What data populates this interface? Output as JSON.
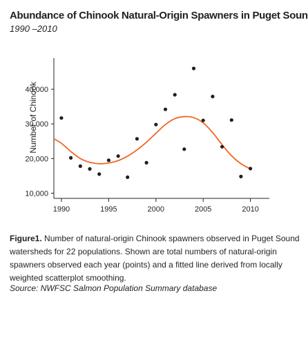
{
  "title": "Abundance of Chinook Natural-Origin Spawners in Puget Sound",
  "subtitle": "1990 –2010",
  "caption": {
    "label": "Figure1.",
    "text": " Number of natural-origin Chinook spawners observed in Puget Sound watersheds for 22 populations. Shown are total numbers of natural-origin spawners observed each year (points) and a fitted line derived from locally weighted scatterplot smoothing."
  },
  "source": "Source: NWFSC Salmon Population Summary database",
  "colors": {
    "points": "#231f20",
    "fit_line": "#f26522",
    "axis": "#231f20"
  },
  "chart_data": {
    "type": "scatter",
    "title": "Abundance of Chinook Natural-Origin Spawners in Puget Sound",
    "subtitle": "1990 –2010",
    "xlabel": "",
    "ylabel": "Number of Chinook",
    "xlim": [
      1989.2,
      2012
    ],
    "ylim": [
      8500,
      49000
    ],
    "xticks": [
      1990,
      1995,
      2000,
      2005,
      2010
    ],
    "yticks": [
      10000,
      20000,
      30000,
      40000
    ],
    "ytick_labels": [
      "10,000",
      "20,000",
      "30,000",
      "40,000"
    ],
    "grid": false,
    "series": [
      {
        "kind": "points",
        "x": [
          1990,
          1991,
          1992,
          1993,
          1994,
          1995,
          1996,
          1997,
          1998,
          1999,
          2000,
          2001,
          2002,
          2003,
          2004,
          2005,
          2006,
          2007,
          2008,
          2009,
          2010
        ],
        "y": [
          31700,
          20200,
          17800,
          17000,
          15500,
          19500,
          20700,
          14600,
          25700,
          18800,
          29800,
          34200,
          38400,
          22700,
          46000,
          31000,
          37900,
          23400,
          31100,
          14800,
          17100
        ]
      },
      {
        "kind": "smooth",
        "x": [
          1989.2,
          1990,
          1991,
          1992,
          1993,
          1994,
          1995,
          1996,
          1997,
          1998,
          1999,
          2000,
          2001,
          2002,
          2003,
          2004,
          2005,
          2006,
          2007,
          2008,
          2009,
          2010
        ],
        "y": [
          25700,
          24400,
          22000,
          20000,
          18900,
          18500,
          18700,
          19400,
          20700,
          22500,
          24700,
          27300,
          29800,
          31500,
          32100,
          31800,
          30300,
          27500,
          24000,
          20800,
          18500,
          17000
        ]
      }
    ]
  }
}
